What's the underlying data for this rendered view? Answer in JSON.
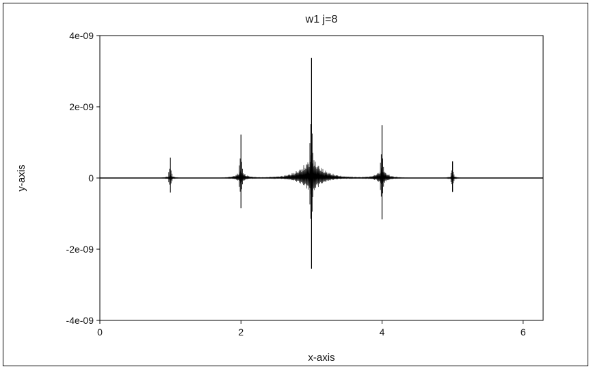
{
  "chart_data": {
    "type": "line",
    "title": "w1 j=8",
    "xlabel": "x-axis",
    "ylabel": "y-axis",
    "xlim": [
      0,
      6.2832
    ],
    "ylim": [
      -4e-09,
      4e-09
    ],
    "x_ticks": [
      0,
      2,
      4,
      6
    ],
    "x_tick_labels": [
      "0",
      "2",
      "4",
      "6"
    ],
    "y_ticks": [
      -4e-09,
      -2e-09,
      0,
      2e-09,
      4e-09
    ],
    "y_tick_labels": [
      "-4e-09",
      "-2e-09",
      "0",
      "2e-09",
      "4e-09"
    ],
    "grid": false,
    "legend": "none",
    "series": [
      {
        "line_color": "#000000",
        "peaks": [
          {
            "x": 1.0,
            "max": 5.7e-10,
            "min": -4.1e-10
          },
          {
            "x": 2.0,
            "max": 1.22e-09,
            "min": -8.5e-10
          },
          {
            "x": 3.0,
            "max": 3.37e-09,
            "min": -2.55e-09
          },
          {
            "x": 4.0,
            "max": 1.48e-09,
            "min": -1.16e-09
          },
          {
            "x": 5.0,
            "max": 4.7e-10,
            "min": -3.9e-10
          }
        ]
      }
    ]
  }
}
